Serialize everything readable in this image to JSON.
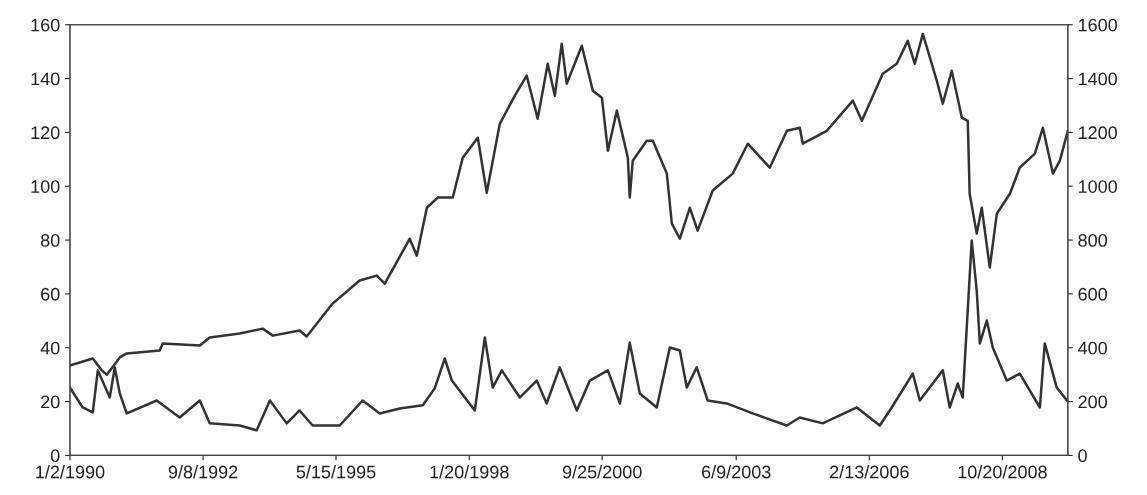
{
  "chart_data": {
    "type": "line",
    "xlim": [
      "1990-01-02",
      "2010-02-14"
    ],
    "xticks": [
      {
        "value": "1990-01-02",
        "label": "1/2/1990"
      },
      {
        "value": "1992-09-08",
        "label": "9/8/1992"
      },
      {
        "value": "1995-05-15",
        "label": "5/15/1995"
      },
      {
        "value": "1998-01-20",
        "label": "1/20/1998"
      },
      {
        "value": "2000-09-25",
        "label": "9/25/2000"
      },
      {
        "value": "2003-06-09",
        "label": "6/9/2003"
      },
      {
        "value": "2006-02-13",
        "label": "2/13/2006"
      },
      {
        "value": "2008-10-20",
        "label": "10/20/2008"
      }
    ],
    "ylim": [
      0,
      160
    ],
    "yticks": [
      0,
      20,
      40,
      60,
      80,
      100,
      120,
      140,
      160
    ],
    "y2lim": [
      0,
      1600
    ],
    "y2ticks": [
      0,
      200,
      400,
      600,
      800,
      1000,
      1200,
      1400,
      1600
    ],
    "grid": false,
    "legend": false,
    "series": [
      {
        "color": "#333333",
        "x": [
          "1990-01-02",
          "1990-04-06",
          "1990-06-19",
          "1990-07-26",
          "1990-10-22",
          "1990-11-28",
          "1991-01-04",
          "1991-02-24",
          "1991-10-03",
          "1992-03-20",
          "1992-08-15",
          "1992-10-27",
          "1993-06-05",
          "1993-10-08",
          "1994-01-13",
          "1994-05-17",
          "1994-08-20",
          "1994-11-24",
          "1995-06-11",
          "1995-11-27",
          "1996-04-01",
          "1996-08-26",
          "1997-02-12",
          "1997-05-11",
          "1997-07-24",
          "1997-09-14",
          "1998-03-02",
          "1998-05-15",
          "1998-07-12",
          "1998-09-17",
          "1999-01-27",
          "1999-06-01",
          "1999-08-13",
          "1999-11-17",
          "2000-03-22",
          "2000-06-26",
          "2000-11-06",
          "2001-02-03",
          "2001-04-16",
          "2001-06-29",
          "2001-11-01",
          "2002-02-05",
          "2002-04-20",
          "2002-06-10",
          "2002-08-22",
          "2002-11-11",
          "2003-03-31",
          "2003-10-08",
          "2004-06-16",
          "2004-09-19",
          "2005-03-07",
          "2005-11-13",
          "2006-05-01",
          "2006-07-28",
          "2006-12-30",
          "2007-02-20",
          "2007-08-08",
          "2007-09-28",
          "2007-11-26",
          "2008-01-02",
          "2008-03-08",
          "2008-04-14",
          "2008-05-07",
          "2008-06-27",
          "2008-08-10",
          "2008-11-21",
          "2009-02-25",
          "2009-07-23",
          "2009-08-28",
          "2009-11-24",
          "2010-02-07"
        ],
        "values": [
          25.2,
          17.8,
          16.0,
          31.6,
          21.5,
          32.7,
          23.0,
          15.6,
          20.4,
          14.1,
          20.4,
          11.9,
          11.1,
          9.3,
          20.4,
          11.9,
          16.7,
          11.1,
          11.1,
          20.4,
          15.6,
          17.4,
          18.6,
          24.9,
          36.0,
          27.8,
          16.7,
          43.8,
          25.2,
          31.6,
          21.5,
          27.8,
          19.3,
          32.7,
          16.7,
          27.8,
          31.6,
          19.3,
          41.9,
          23.0,
          17.8,
          40.1,
          39.0,
          25.2,
          32.7,
          20.4,
          19.3,
          15.6,
          11.1,
          14.1,
          11.9,
          17.8,
          11.1,
          17.8,
          30.4,
          20.4,
          31.6,
          17.8,
          26.7,
          21.5,
          79.8,
          61.2,
          41.6,
          50.1,
          40.1,
          27.8,
          30.4,
          17.8,
          41.6,
          25.2,
          20.4
        ]
      },
      {
        "color": "#333333",
        "axis": "y2",
        "x": [
          "1990-01-02",
          "1990-06-19",
          "1990-08-24",
          "1990-09-30",
          "1991-01-04",
          "1991-02-24",
          "1991-10-25",
          "1991-11-16",
          "1992-08-15",
          "1992-10-27",
          "1993-06-05",
          "1993-11-21",
          "1994-02-04",
          "1994-08-20",
          "1994-10-11",
          "1995-04-20",
          "1995-11-05",
          "1996-03-10",
          "1996-05-08",
          "1996-11-08",
          "1996-12-30",
          "1997-03-14",
          "1997-06-02",
          "1997-09-21",
          "1997-12-03",
          "1998-03-24",
          "1998-05-29",
          "1998-09-02",
          "1998-12-21",
          "1999-03-19",
          "1999-06-08",
          "1999-08-21",
          "1999-10-12",
          "1999-12-02",
          "2000-01-08",
          "2000-04-28",
          "2000-07-18",
          "2000-09-23",
          "2000-11-06",
          "2001-01-11",
          "2001-04-02",
          "2001-04-16",
          "2001-05-08",
          "2001-08-19",
          "2001-10-03",
          "2002-01-14",
          "2002-02-20",
          "2002-04-20",
          "2002-07-02",
          "2002-08-29",
          "2002-12-18",
          "2003-05-14",
          "2003-09-02",
          "2004-02-11",
          "2004-06-16",
          "2004-09-19",
          "2004-10-11",
          "2005-04-06",
          "2005-10-15",
          "2005-12-20",
          "2006-05-23",
          "2006-09-03",
          "2006-11-23",
          "2007-01-14",
          "2007-03-14",
          "2007-06-25",
          "2007-08-08",
          "2007-10-13",
          "2007-12-26",
          "2008-02-08",
          "2008-02-22",
          "2008-04-14",
          "2008-05-21",
          "2008-07-19",
          "2008-09-09",
          "2008-12-14",
          "2009-02-25",
          "2009-06-16",
          "2009-08-14",
          "2009-10-27",
          "2009-12-17",
          "2010-02-14"
        ],
        "values": [
          334,
          360,
          316,
          300,
          364,
          379,
          390,
          416,
          408,
          438,
          453,
          471,
          445,
          464,
          442,
          564,
          650,
          668,
          638,
          805,
          742,
          920,
          958,
          958,
          1106,
          1180,
          976,
          1232,
          1336,
          1411,
          1251,
          1455,
          1336,
          1529,
          1381,
          1522,
          1355,
          1329,
          1132,
          1281,
          1106,
          958,
          1095,
          1169,
          1169,
          1047,
          861,
          805,
          920,
          835,
          984,
          1047,
          1158,
          1069,
          1206,
          1217,
          1158,
          1206,
          1318,
          1243,
          1418,
          1455,
          1540,
          1455,
          1566,
          1392,
          1307,
          1429,
          1255,
          1243,
          972,
          824,
          920,
          698,
          898,
          972,
          1069,
          1121,
          1217,
          1047,
          1095,
          1206
        ]
      }
    ]
  }
}
